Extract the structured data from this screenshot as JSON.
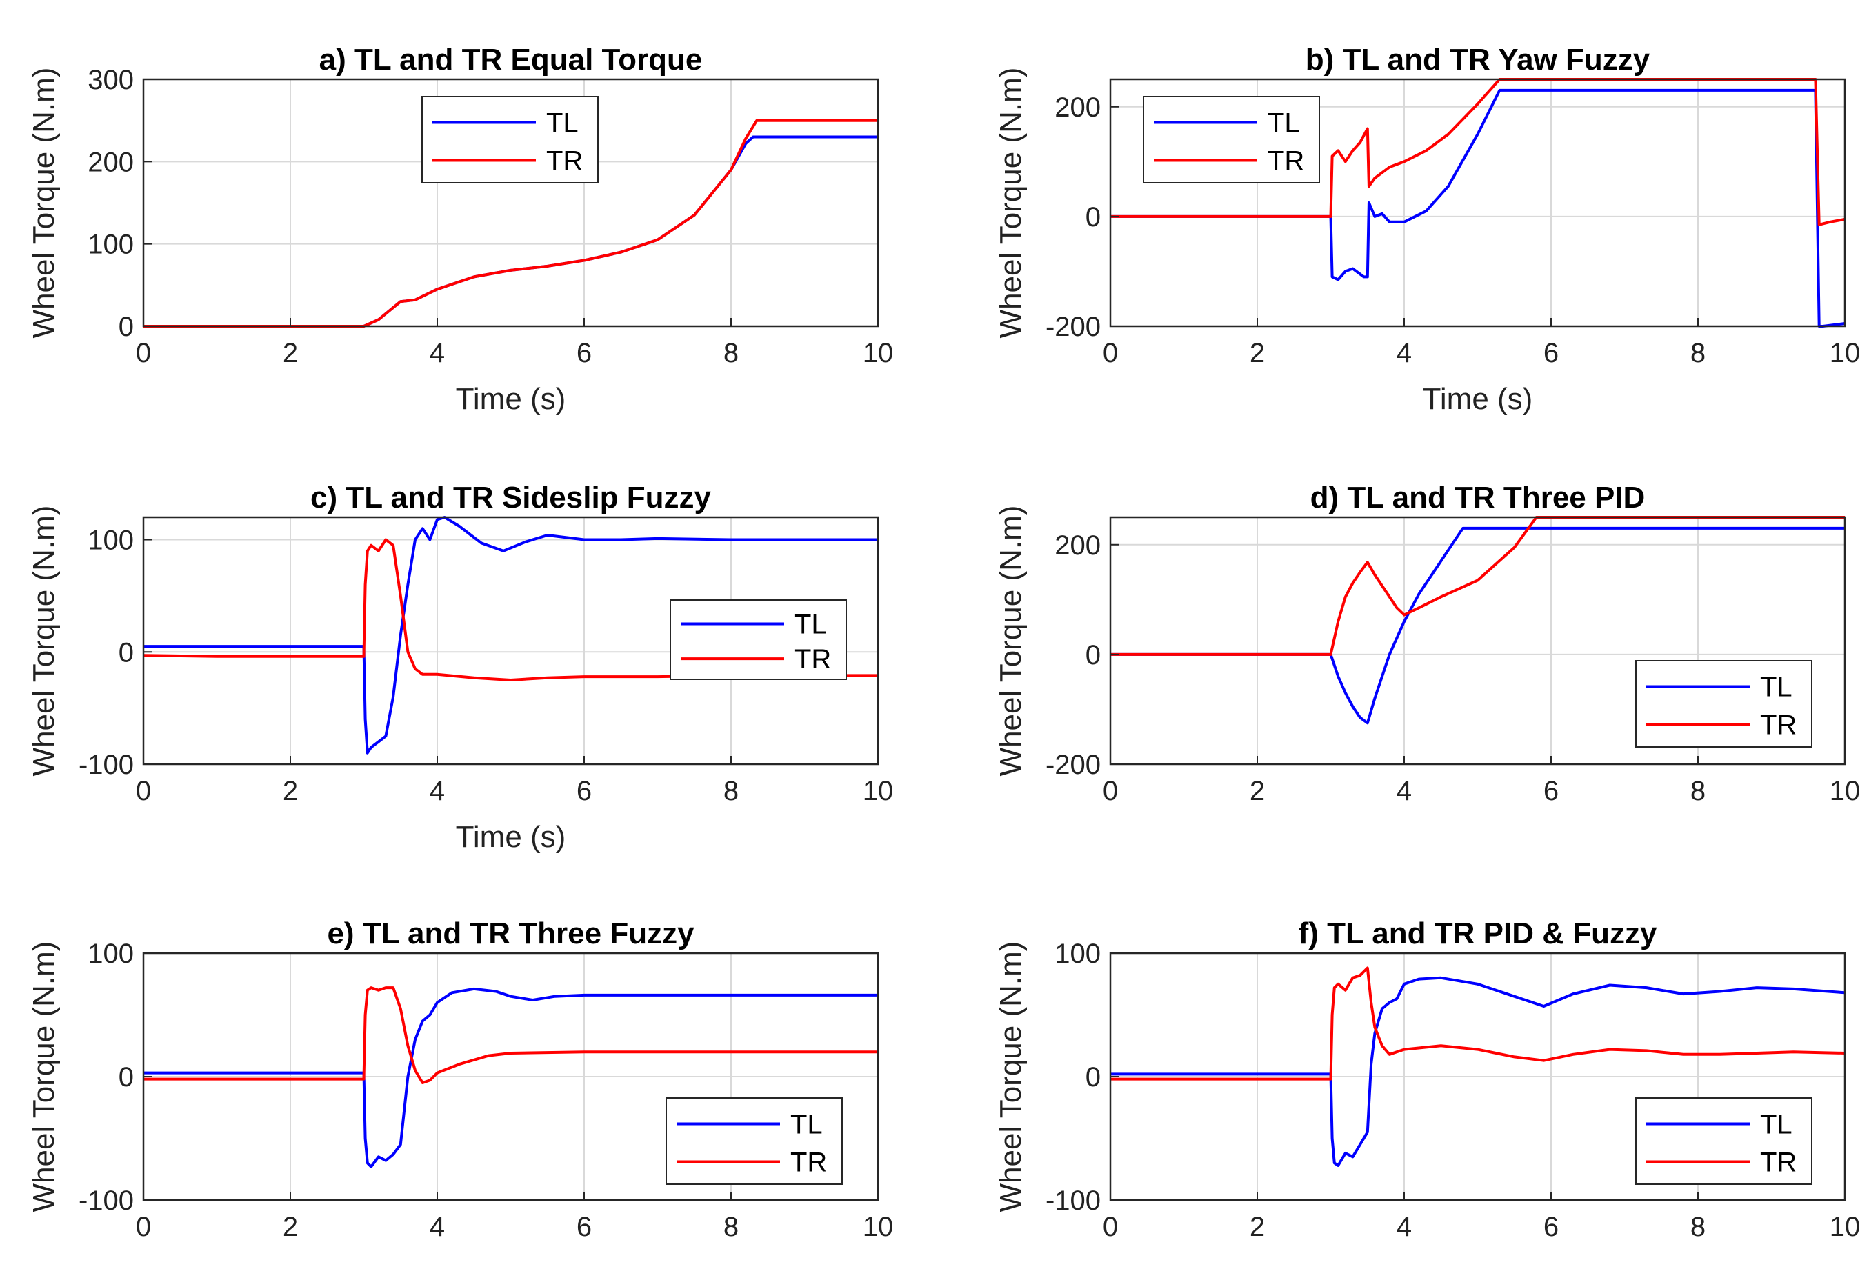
{
  "colors": {
    "TL": "#0000ff",
    "TR": "#ff0000",
    "grid": "#d9d9d9",
    "axis": "#262626"
  },
  "chart_data": [
    {
      "type": "line",
      "title": "a) TL and TR Equal Torque",
      "xlabel": "Time (s)",
      "ylabel": "Wheel Torque (N.m)",
      "xlim": [
        0,
        10
      ],
      "ylim": [
        0,
        300
      ],
      "xticks": [
        0,
        2,
        4,
        6,
        8,
        10
      ],
      "yticks": [
        0,
        100,
        200,
        300
      ],
      "grid": true,
      "legend": "top-center",
      "series": [
        {
          "name": "TL",
          "color": "#0000ff",
          "x": [
            0,
            3.0,
            3.2,
            3.5,
            3.7,
            4.0,
            4.5,
            5.0,
            5.5,
            6.0,
            6.5,
            7.0,
            7.5,
            8.0,
            8.2,
            8.3,
            10
          ],
          "y": [
            0,
            0,
            8,
            30,
            32,
            45,
            60,
            68,
            73,
            80,
            90,
            105,
            135,
            190,
            222,
            230,
            230
          ]
        },
        {
          "name": "TR",
          "color": "#ff0000",
          "x": [
            0,
            3.0,
            3.2,
            3.5,
            3.7,
            4.0,
            4.5,
            5.0,
            5.5,
            6.0,
            6.5,
            7.0,
            7.5,
            8.0,
            8.2,
            8.35,
            10
          ],
          "y": [
            0,
            0,
            8,
            30,
            32,
            45,
            60,
            68,
            73,
            80,
            90,
            105,
            135,
            190,
            228,
            250,
            250
          ]
        }
      ]
    },
    {
      "type": "line",
      "title": "b) TL and TR Yaw Fuzzy",
      "xlabel": "Time (s)",
      "ylabel": "Wheel Torque (N.m)",
      "xlim": [
        0,
        10
      ],
      "ylim": [
        -200,
        250
      ],
      "xticks": [
        0,
        2,
        4,
        6,
        8,
        10
      ],
      "yticks": [
        -200,
        0,
        200
      ],
      "grid": true,
      "legend": "top-left",
      "series": [
        {
          "name": "TL",
          "color": "#0000ff",
          "x": [
            0,
            3.0,
            3.02,
            3.1,
            3.2,
            3.3,
            3.45,
            3.5,
            3.52,
            3.6,
            3.7,
            3.8,
            4.0,
            4.3,
            4.6,
            5.0,
            5.3,
            9.6,
            9.65,
            9.7,
            10
          ],
          "y": [
            0,
            0,
            -110,
            -115,
            -100,
            -95,
            -110,
            -110,
            25,
            0,
            5,
            -10,
            -10,
            10,
            55,
            150,
            230,
            230,
            -200,
            -200,
            -195
          ]
        },
        {
          "name": "TR",
          "color": "#ff0000",
          "x": [
            0,
            3.0,
            3.02,
            3.1,
            3.2,
            3.3,
            3.4,
            3.5,
            3.52,
            3.6,
            3.8,
            4.0,
            4.3,
            4.6,
            5.0,
            5.3,
            9.6,
            9.65,
            9.8,
            10
          ],
          "y": [
            0,
            0,
            110,
            120,
            100,
            120,
            135,
            160,
            55,
            70,
            90,
            100,
            120,
            150,
            205,
            250,
            250,
            -15,
            -10,
            -5
          ]
        }
      ]
    },
    {
      "type": "line",
      "title": "c) TL and TR Sideslip Fuzzy",
      "xlabel": "Time (s)",
      "ylabel": "Wheel Torque (N.m)",
      "xlim": [
        0,
        10
      ],
      "ylim": [
        -100,
        120
      ],
      "xticks": [
        0,
        2,
        4,
        6,
        8,
        10
      ],
      "yticks": [
        -100,
        0,
        100
      ],
      "grid": true,
      "legend": "center-right",
      "series": [
        {
          "name": "TL",
          "color": "#0000ff",
          "x": [
            0,
            1.0,
            2.0,
            3.0,
            3.02,
            3.05,
            3.1,
            3.2,
            3.3,
            3.4,
            3.5,
            3.6,
            3.7,
            3.8,
            3.9,
            4.0,
            4.1,
            4.3,
            4.6,
            4.9,
            5.2,
            5.5,
            6.0,
            6.5,
            7.0,
            8.0,
            10
          ],
          "y": [
            5,
            5,
            5,
            5,
            -60,
            -90,
            -85,
            -80,
            -75,
            -40,
            15,
            60,
            100,
            110,
            100,
            118,
            120,
            112,
            97,
            90,
            98,
            104,
            100,
            100,
            101,
            100,
            100
          ]
        },
        {
          "name": "TR",
          "color": "#ff0000",
          "x": [
            0,
            1.0,
            2.0,
            3.0,
            3.02,
            3.05,
            3.1,
            3.2,
            3.3,
            3.4,
            3.5,
            3.6,
            3.7,
            3.8,
            4.0,
            4.5,
            5.0,
            5.5,
            6.0,
            7.0,
            8.0,
            10
          ],
          "y": [
            -3,
            -4,
            -4,
            -4,
            60,
            90,
            95,
            90,
            100,
            95,
            50,
            0,
            -15,
            -20,
            -20,
            -23,
            -25,
            -23,
            -22,
            -22,
            -21,
            -21
          ]
        }
      ]
    },
    {
      "type": "line",
      "title": "d) TL and TR Three PID",
      "xlabel": "",
      "ylabel": "Wheel Torque (N.m)",
      "xlim": [
        0,
        10
      ],
      "ylim": [
        -200,
        250
      ],
      "xticks": [
        0,
        2,
        4,
        6,
        8,
        10
      ],
      "yticks": [
        -200,
        0,
        200
      ],
      "grid": true,
      "legend": "bottom-right",
      "series": [
        {
          "name": "TL",
          "color": "#0000ff",
          "x": [
            0,
            3.0,
            3.1,
            3.2,
            3.3,
            3.4,
            3.5,
            3.6,
            3.7,
            3.8,
            4.0,
            4.2,
            4.4,
            4.6,
            4.8,
            10
          ],
          "y": [
            0,
            0,
            -40,
            -70,
            -95,
            -115,
            -125,
            -80,
            -40,
            0,
            60,
            110,
            150,
            190,
            230,
            230
          ]
        },
        {
          "name": "TR",
          "color": "#ff0000",
          "x": [
            0,
            3.0,
            3.1,
            3.2,
            3.3,
            3.4,
            3.5,
            3.6,
            3.7,
            3.8,
            3.9,
            4.0,
            4.2,
            4.5,
            5.0,
            5.5,
            5.8,
            10
          ],
          "y": [
            0,
            0,
            60,
            105,
            130,
            150,
            168,
            145,
            125,
            105,
            85,
            72,
            85,
            105,
            135,
            195,
            250,
            250
          ]
        }
      ]
    },
    {
      "type": "line",
      "title": "e) TL and TR Three Fuzzy",
      "xlabel": "",
      "ylabel": "Wheel Torque (N.m)",
      "xlim": [
        0,
        10
      ],
      "ylim": [
        -100,
        100
      ],
      "xticks": [
        0,
        2,
        4,
        6,
        8,
        10
      ],
      "yticks": [
        -100,
        0,
        100
      ],
      "grid": true,
      "legend": "bottom-right",
      "series": [
        {
          "name": "TL",
          "color": "#0000ff",
          "x": [
            0,
            1.0,
            2.0,
            3.0,
            3.02,
            3.05,
            3.1,
            3.2,
            3.3,
            3.4,
            3.5,
            3.6,
            3.7,
            3.8,
            3.9,
            4.0,
            4.2,
            4.5,
            4.8,
            5.0,
            5.3,
            5.6,
            6.0,
            7.0,
            8.0,
            10
          ],
          "y": [
            3,
            3,
            3,
            3,
            -50,
            -70,
            -73,
            -65,
            -68,
            -63,
            -55,
            0,
            30,
            45,
            50,
            60,
            68,
            71,
            69,
            65,
            62,
            65,
            66,
            66,
            66,
            66
          ]
        },
        {
          "name": "TR",
          "color": "#ff0000",
          "x": [
            0,
            1.0,
            2.0,
            3.0,
            3.02,
            3.05,
            3.1,
            3.2,
            3.3,
            3.4,
            3.5,
            3.6,
            3.7,
            3.8,
            3.9,
            4.0,
            4.3,
            4.7,
            5.0,
            6.0,
            7.0,
            8.0,
            10
          ],
          "y": [
            -2,
            -2,
            -2,
            -2,
            50,
            70,
            72,
            70,
            72,
            72,
            55,
            25,
            5,
            -5,
            -3,
            3,
            10,
            17,
            19,
            20,
            20,
            20,
            20
          ]
        }
      ]
    },
    {
      "type": "line",
      "title": "f) TL and TR PID & Fuzzy",
      "xlabel": "",
      "ylabel": "Wheel Torque (N.m)",
      "xlim": [
        0,
        10
      ],
      "ylim": [
        -100,
        100
      ],
      "xticks": [
        0,
        2,
        4,
        6,
        8,
        10
      ],
      "yticks": [
        -100,
        0,
        100
      ],
      "grid": true,
      "legend": "bottom-right",
      "series": [
        {
          "name": "TL",
          "color": "#0000ff",
          "x": [
            0,
            1.0,
            2.0,
            3.0,
            3.02,
            3.05,
            3.1,
            3.2,
            3.3,
            3.4,
            3.5,
            3.55,
            3.6,
            3.7,
            3.8,
            3.9,
            4.0,
            4.2,
            4.5,
            5.0,
            5.5,
            5.9,
            6.3,
            6.8,
            7.3,
            7.8,
            8.3,
            8.8,
            9.3,
            10
          ],
          "y": [
            2,
            2,
            2,
            2,
            -50,
            -70,
            -72,
            -62,
            -65,
            -55,
            -45,
            10,
            35,
            55,
            60,
            63,
            75,
            79,
            80,
            75,
            65,
            57,
            67,
            74,
            72,
            67,
            69,
            72,
            71,
            68
          ]
        },
        {
          "name": "TR",
          "color": "#ff0000",
          "x": [
            0,
            1.0,
            2.0,
            3.0,
            3.02,
            3.05,
            3.1,
            3.2,
            3.3,
            3.4,
            3.5,
            3.55,
            3.6,
            3.7,
            3.8,
            4.0,
            4.5,
            5.0,
            5.5,
            5.9,
            6.3,
            6.8,
            7.3,
            7.8,
            8.3,
            8.8,
            9.3,
            10
          ],
          "y": [
            -2,
            -2,
            -2,
            -2,
            50,
            72,
            75,
            70,
            80,
            82,
            88,
            60,
            40,
            25,
            18,
            22,
            25,
            22,
            16,
            13,
            18,
            22,
            21,
            18,
            18,
            19,
            20,
            19
          ]
        }
      ]
    }
  ]
}
